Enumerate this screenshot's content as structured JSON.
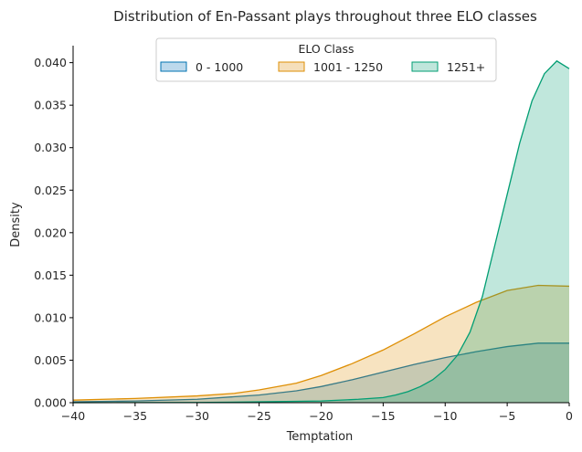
{
  "chart_data": {
    "type": "area",
    "title": "Distribution of En-Passant plays throughout three ELO classes",
    "xlabel": "Temptation",
    "ylabel": "Density",
    "xlim": [
      -40,
      0
    ],
    "ylim": [
      0,
      0.042
    ],
    "xticks": [
      -40,
      -35,
      -30,
      -25,
      -20,
      -15,
      -10,
      -5,
      0
    ],
    "xtick_labels": [
      "−40",
      "−35",
      "−30",
      "−25",
      "−20",
      "−15",
      "−10",
      "−5",
      "0"
    ],
    "yticks": [
      0,
      0.005,
      0.01,
      0.015,
      0.02,
      0.025,
      0.03,
      0.035,
      0.04
    ],
    "ytick_labels": [
      "0.000",
      "0.005",
      "0.010",
      "0.015",
      "0.020",
      "0.025",
      "0.030",
      "0.035",
      "0.040"
    ],
    "grid": false,
    "legend": {
      "title": "ELO Class",
      "placement": "top-center",
      "ncol": 3
    },
    "series": [
      {
        "name": "0 - 1000",
        "color": "#0173b2",
        "fill": "#bcd9ec",
        "x": [
          -40,
          -35,
          -30,
          -25,
          -22,
          -20,
          -17.5,
          -15,
          -12.5,
          -10,
          -7.5,
          -5,
          -2.5,
          0
        ],
        "y": [
          0.0001,
          0.0002,
          0.0004,
          0.0009,
          0.0014,
          0.0019,
          0.0027,
          0.0036,
          0.0045,
          0.0053,
          0.006,
          0.0066,
          0.007,
          0.007
        ]
      },
      {
        "name": "1001 - 1250",
        "color": "#de8f05",
        "fill": "#f5dfbb",
        "x": [
          -40,
          -35,
          -30,
          -27,
          -25,
          -22,
          -20,
          -17.5,
          -15,
          -12.5,
          -10,
          -7.5,
          -5,
          -2.5,
          0
        ],
        "y": [
          0.0003,
          0.0005,
          0.0008,
          0.0011,
          0.0015,
          0.0023,
          0.0032,
          0.0046,
          0.0062,
          0.0081,
          0.0101,
          0.0118,
          0.0132,
          0.0138,
          0.0137
        ]
      },
      {
        "name": "1251+",
        "color": "#029e73",
        "fill": "#bfe6db",
        "x": [
          -40,
          -30,
          -25,
          -20,
          -17,
          -15,
          -14,
          -13,
          -12,
          -11,
          -10,
          -9,
          -8,
          -7,
          -6,
          -5,
          -4,
          -3,
          -2,
          -1,
          0
        ],
        "y": [
          0.0,
          3e-05,
          0.0001,
          0.0002,
          0.0004,
          0.0006,
          0.0009,
          0.0013,
          0.0019,
          0.0027,
          0.0039,
          0.0056,
          0.0083,
          0.0125,
          0.0185,
          0.0245,
          0.0305,
          0.0355,
          0.0387,
          0.0402,
          0.0393
        ]
      }
    ]
  }
}
